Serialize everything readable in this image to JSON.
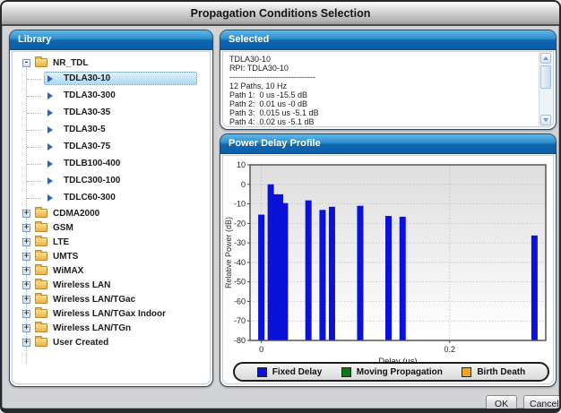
{
  "window": {
    "title": "Propagation Conditions Selection"
  },
  "icons": {
    "expanded_glyph": "-",
    "collapsed_glyph": "+",
    "leaf_glyph": "triangle-right",
    "scroll_up": "chevron-up",
    "scroll_down": "chevron-down"
  },
  "colors": {
    "header_blue_top": "#64b8ea",
    "header_blue_bottom": "#0a5ea8",
    "selection_highlight": "#aad8f5",
    "bar_blue": "#0a12da",
    "legend_green": "#0a7a10",
    "legend_orange": "#f2a51f",
    "folder_yellow": "#eeb249"
  },
  "library": {
    "header": "Library",
    "tree": [
      {
        "label": "NR_TDL",
        "expanded": true,
        "children": [
          {
            "label": "TDLA30-10",
            "selected": true
          },
          {
            "label": "TDLA30-300"
          },
          {
            "label": "TDLA30-35"
          },
          {
            "label": "TDLA30-5"
          },
          {
            "label": "TDLA30-75"
          },
          {
            "label": "TDLB100-400"
          },
          {
            "label": "TDLC300-100"
          },
          {
            "label": "TDLC60-300"
          }
        ]
      },
      {
        "label": "CDMA2000",
        "expanded": false
      },
      {
        "label": "GSM",
        "expanded": false
      },
      {
        "label": "LTE",
        "expanded": false
      },
      {
        "label": "UMTS",
        "expanded": false
      },
      {
        "label": "WiMAX",
        "expanded": false
      },
      {
        "label": "Wireless LAN",
        "expanded": false
      },
      {
        "label": "Wireless LAN/TGac",
        "expanded": false
      },
      {
        "label": "Wireless LAN/TGax Indoor",
        "expanded": false
      },
      {
        "label": "Wireless LAN/TGn",
        "expanded": false
      },
      {
        "label": "User Created",
        "expanded": false
      }
    ]
  },
  "selected_panel": {
    "header": "Selected",
    "lines": [
      "TDLA30-10",
      "RPI: TDLA30-10",
      "--------------------------------",
      "12 Paths, 10 Hz",
      "Path 1:  0 us -15.5 dB",
      "Path 2:  0.01 us -0 dB",
      "Path 3:  0.015 us -5.1 dB",
      "Path 4:  0.02 us -5.1 dB"
    ]
  },
  "chart_panel": {
    "header": "Power Delay Profile"
  },
  "chart_data": {
    "type": "bar",
    "title": "Power Delay Profile",
    "xlabel": "Delay (us)",
    "ylabel": "Relative Power (dB)",
    "xlim": [
      -0.012,
      0.302
    ],
    "ylim": [
      -80,
      10
    ],
    "x_ticks": [
      0,
      0.2
    ],
    "x_tick_labels": [
      "0",
      "0.2"
    ],
    "y_ticks": [
      10,
      0,
      -10,
      -20,
      -30,
      -40,
      -50,
      -60,
      -70,
      -80
    ],
    "grid": "dotted",
    "bar_bottom": -80,
    "series": [
      {
        "name": "Fixed Delay",
        "color": "#0a12da",
        "x": [
          0,
          0.01,
          0.015,
          0.02,
          0.025,
          0.05,
          0.065,
          0.075,
          0.105,
          0.135,
          0.15,
          0.29
        ],
        "y": [
          -15.5,
          0,
          -5.1,
          -5.1,
          -9.6,
          -8.2,
          -13.1,
          -11.5,
          -11.0,
          -16.2,
          -16.6,
          -26.2
        ]
      }
    ],
    "legend": [
      {
        "label": "Fixed Delay",
        "color": "#0a12da"
      },
      {
        "label": "Moving Propagation",
        "color": "#0a7a10"
      },
      {
        "label": "Birth Death",
        "color": "#f2a51f"
      }
    ],
    "legend_position": "bottom"
  },
  "buttons": {
    "ok": "OK",
    "cancel": "Cancel"
  }
}
